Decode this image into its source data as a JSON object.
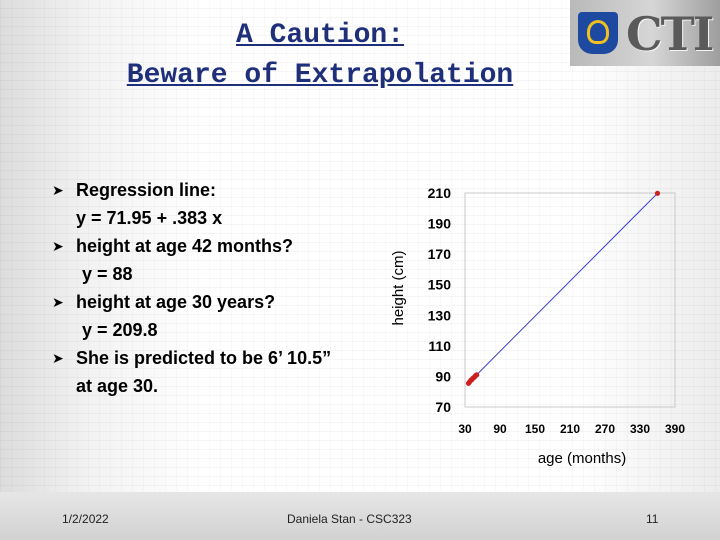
{
  "slide": {
    "title_line1": "A Caution:",
    "title_line2": "Beware of Extrapolation",
    "logo_text": "CTI",
    "bullets": [
      {
        "text": "Regression line:",
        "continuation": "y = 71.95 + .383 x"
      },
      {
        "text": "height at age 42 months?",
        "continuation": "y = 88"
      },
      {
        "text": "height at age 30 years?",
        "continuation": "y = 209.8"
      },
      {
        "text": "She is predicted to be 6’ 10.5”",
        "continuation": "at age 30."
      }
    ],
    "footer": {
      "date": "1/2/2022",
      "author": "Daniela Stan -  CSC323",
      "page": "11"
    }
  },
  "chart_data": {
    "type": "scatter",
    "xlabel": "age (months)",
    "ylabel": "height (cm)",
    "xlim": [
      30,
      390
    ],
    "ylim": [
      70,
      210
    ],
    "x_ticks": [
      30,
      90,
      150,
      210,
      270,
      330,
      390
    ],
    "y_ticks": [
      70,
      90,
      110,
      130,
      150,
      170,
      190,
      210
    ],
    "grid": false,
    "line": {
      "x": [
        42,
        360
      ],
      "y": [
        88,
        209.8
      ]
    },
    "points": [
      {
        "x": 36,
        "y": 85.5
      },
      {
        "x": 38,
        "y": 86.5
      },
      {
        "x": 40,
        "y": 87.5
      },
      {
        "x": 42,
        "y": 88
      },
      {
        "x": 44,
        "y": 89
      },
      {
        "x": 46,
        "y": 89.5
      },
      {
        "x": 48,
        "y": 90.5
      },
      {
        "x": 50,
        "y": 91
      },
      {
        "x": 360,
        "y": 209.8
      }
    ],
    "colors": {
      "line": "#3b3bd6",
      "points": "#cc2020"
    }
  }
}
